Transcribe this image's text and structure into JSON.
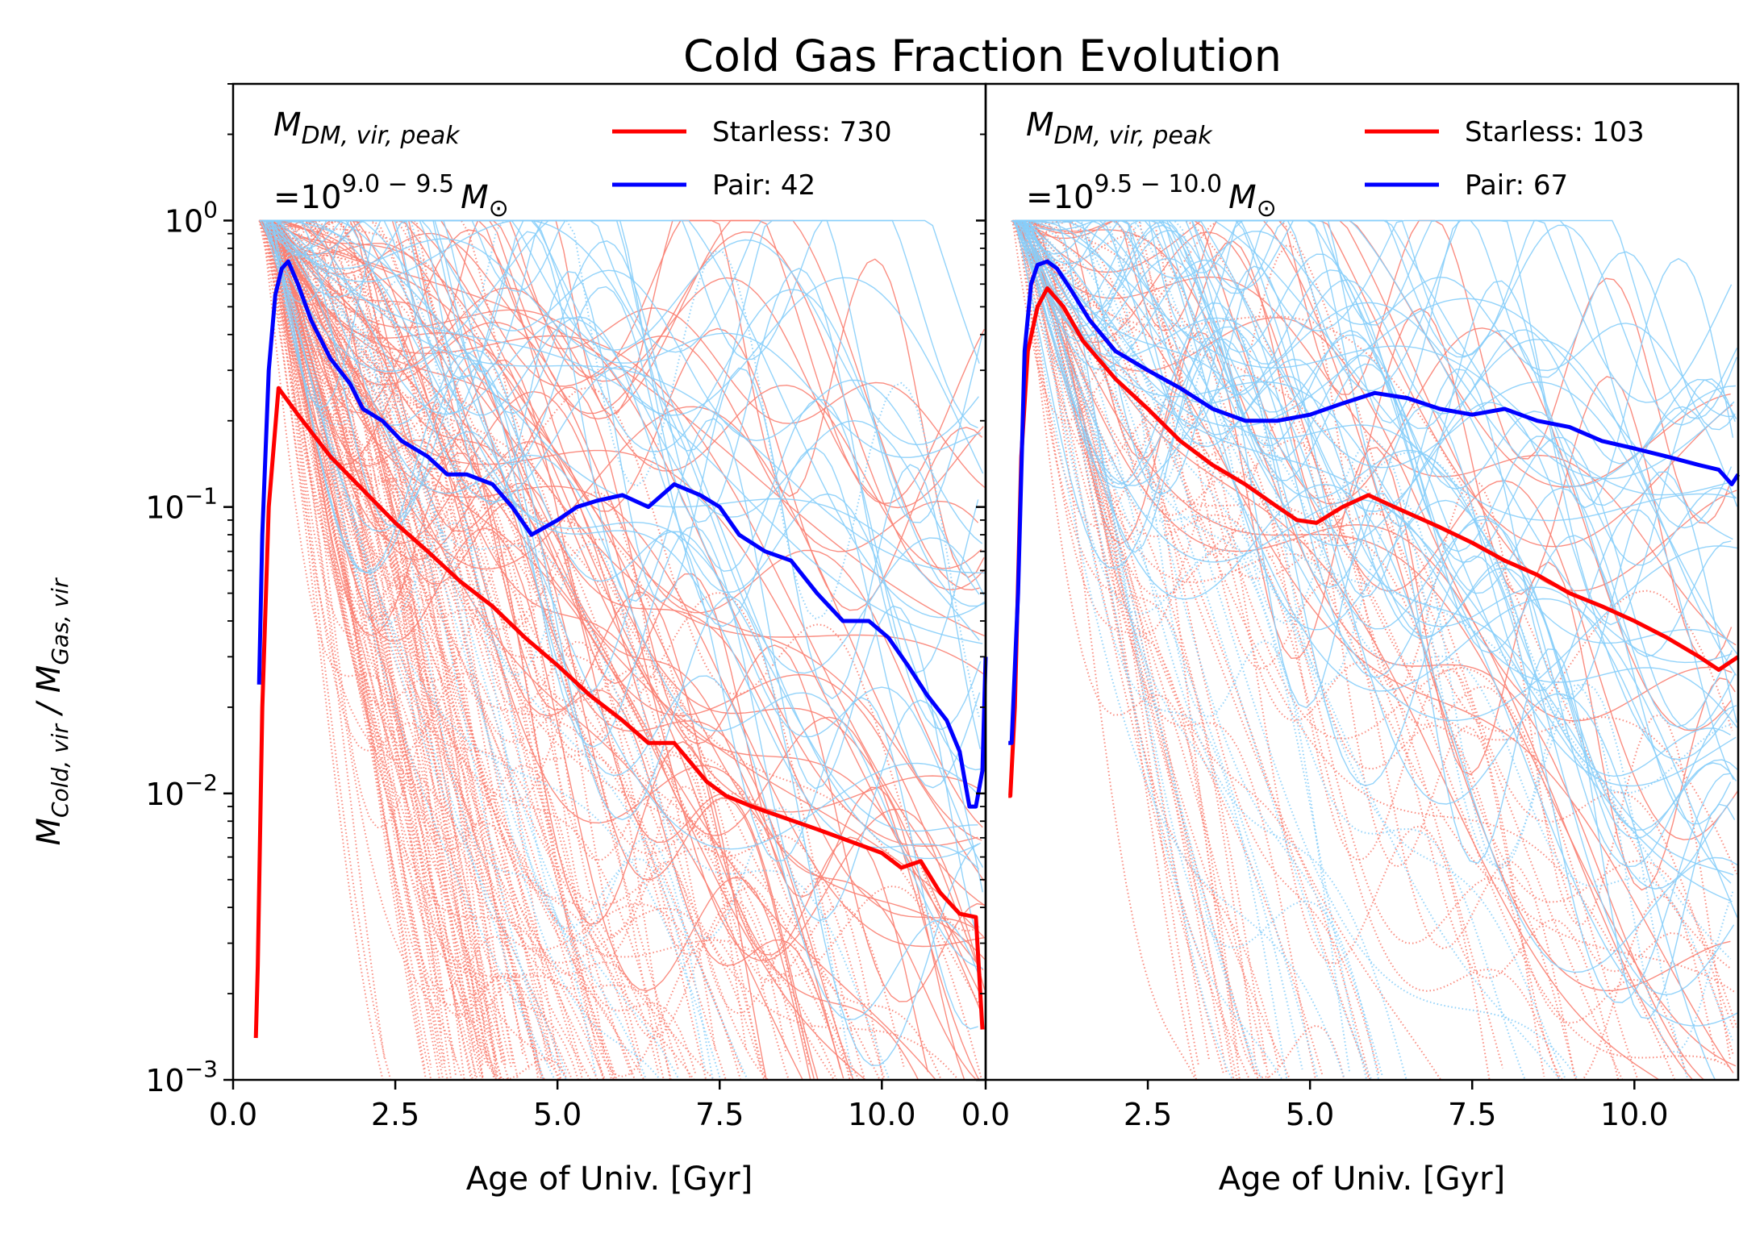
{
  "title": "Cold Gas Fraction Evolution",
  "ylabel": {
    "prefix": "M",
    "sub1": "Cold, vir",
    "slash": " / M",
    "sub2": "Gas, vir"
  },
  "y_ticks": [
    {
      "value": 1,
      "base": "10",
      "exp": "0"
    },
    {
      "value": 0.1,
      "base": "10",
      "exp": "−1"
    },
    {
      "value": 0.01,
      "base": "10",
      "exp": "−2"
    },
    {
      "value": 0.001,
      "base": "10",
      "exp": "−3"
    }
  ],
  "colors": {
    "starless_median": "#ff0000",
    "pair_median": "#0000ff",
    "starless_individual": "#fa8072",
    "pair_individual": "#87cefa"
  },
  "chart_data": [
    {
      "type": "line",
      "xlabel": "Age of Univ. [Gyr]",
      "xlim": [
        0.0,
        11.6
      ],
      "ylim": [
        0.001,
        3.0
      ],
      "yscale": "log",
      "x_ticks": [
        "0.0",
        "2.5",
        "5.0",
        "7.5",
        "10.0"
      ],
      "mass_label": {
        "line1_base": "M",
        "line1_sub": "DM, vir, peak",
        "line2_pre": "=10",
        "line2_exp": "9.0 − 9.5",
        "line2_unit": "M",
        "line2_unit_sub": "⊙"
      },
      "legend": [
        {
          "label": "Starless: 730",
          "color": "#ff0000"
        },
        {
          "label": "Pair: 42",
          "color": "#0000ff"
        }
      ],
      "series": [
        {
          "name": "Starless: 730",
          "color": "#ff0000",
          "x": [
            0.35,
            0.38,
            0.45,
            0.55,
            0.7,
            1.0,
            1.5,
            2.5,
            3.0,
            3.5,
            4.0,
            4.5,
            5.0,
            5.5,
            6.0,
            6.4,
            6.8,
            7.3,
            7.6,
            8.0,
            9.0,
            10.0,
            10.3,
            10.6,
            10.9,
            11.2,
            11.45,
            11.55
          ],
          "y": [
            0.0014,
            0.0025,
            0.02,
            0.1,
            0.26,
            0.21,
            0.15,
            0.088,
            0.07,
            0.055,
            0.045,
            0.035,
            0.028,
            0.022,
            0.018,
            0.015,
            0.015,
            0.011,
            0.0098,
            0.009,
            0.0075,
            0.0062,
            0.0055,
            0.0058,
            0.0045,
            0.0038,
            0.0037,
            0.0015
          ]
        },
        {
          "name": "Pair: 42",
          "color": "#0000ff",
          "x": [
            0.4,
            0.45,
            0.55,
            0.65,
            0.75,
            0.85,
            1.0,
            1.2,
            1.5,
            1.8,
            2.0,
            2.3,
            2.6,
            3.0,
            3.3,
            3.6,
            4.0,
            4.3,
            4.6,
            5.0,
            5.3,
            5.6,
            6.0,
            6.4,
            6.8,
            7.2,
            7.5,
            7.8,
            8.2,
            8.6,
            9.0,
            9.4,
            9.8,
            10.1,
            10.4,
            10.7,
            11.0,
            11.2,
            11.35,
            11.45,
            11.55,
            11.6
          ],
          "y": [
            0.024,
            0.08,
            0.3,
            0.55,
            0.68,
            0.72,
            0.6,
            0.45,
            0.33,
            0.27,
            0.22,
            0.2,
            0.17,
            0.15,
            0.13,
            0.13,
            0.12,
            0.1,
            0.08,
            0.09,
            0.1,
            0.105,
            0.11,
            0.1,
            0.12,
            0.11,
            0.1,
            0.08,
            0.07,
            0.065,
            0.05,
            0.04,
            0.04,
            0.035,
            0.028,
            0.022,
            0.018,
            0.014,
            0.009,
            0.009,
            0.012,
            0.03
          ]
        }
      ]
    },
    {
      "type": "line",
      "xlabel": "Age of Univ. [Gyr]",
      "xlim": [
        0.0,
        11.6
      ],
      "ylim": [
        0.001,
        3.0
      ],
      "yscale": "log",
      "x_ticks": [
        "0.0",
        "2.5",
        "5.0",
        "7.5",
        "10.0"
      ],
      "mass_label": {
        "line1_base": "M",
        "line1_sub": "DM, vir, peak",
        "line2_pre": "=10",
        "line2_exp": "9.5 − 10.0",
        "line2_unit": "M",
        "line2_unit_sub": "⊙"
      },
      "legend": [
        {
          "label": "Starless: 103",
          "color": "#ff0000"
        },
        {
          "label": "Pair: 67",
          "color": "#0000ff"
        }
      ],
      "series": [
        {
          "name": "Starless: 103",
          "color": "#ff0000",
          "x": [
            0.35,
            0.38,
            0.45,
            0.55,
            0.65,
            0.8,
            0.95,
            1.2,
            1.5,
            2.0,
            2.5,
            3.0,
            3.5,
            4.0,
            4.5,
            4.8,
            5.1,
            5.5,
            5.9,
            6.3,
            7.0,
            7.5,
            8.0,
            8.5,
            9.0,
            9.5,
            10.0,
            10.5,
            11.0,
            11.3,
            11.6
          ],
          "y": [
            0.0098,
            0.0098,
            0.02,
            0.15,
            0.35,
            0.5,
            0.58,
            0.5,
            0.38,
            0.28,
            0.22,
            0.17,
            0.14,
            0.12,
            0.1,
            0.09,
            0.088,
            0.1,
            0.11,
            0.1,
            0.085,
            0.075,
            0.065,
            0.058,
            0.05,
            0.045,
            0.04,
            0.035,
            0.03,
            0.027,
            0.03
          ]
        },
        {
          "name": "Pair: 67",
          "color": "#0000ff",
          "x": [
            0.35,
            0.4,
            0.5,
            0.6,
            0.7,
            0.8,
            0.95,
            1.1,
            1.3,
            1.6,
            2.0,
            2.5,
            3.0,
            3.5,
            4.0,
            4.5,
            5.0,
            5.5,
            6.0,
            6.5,
            7.0,
            7.5,
            8.0,
            8.5,
            9.0,
            9.5,
            10.0,
            10.5,
            11.0,
            11.3,
            11.5,
            11.6
          ],
          "y": [
            0.015,
            0.015,
            0.05,
            0.35,
            0.6,
            0.7,
            0.72,
            0.68,
            0.58,
            0.45,
            0.35,
            0.3,
            0.26,
            0.22,
            0.2,
            0.2,
            0.21,
            0.23,
            0.25,
            0.24,
            0.22,
            0.21,
            0.22,
            0.2,
            0.19,
            0.17,
            0.16,
            0.15,
            0.14,
            0.135,
            0.12,
            0.13
          ]
        }
      ]
    }
  ]
}
